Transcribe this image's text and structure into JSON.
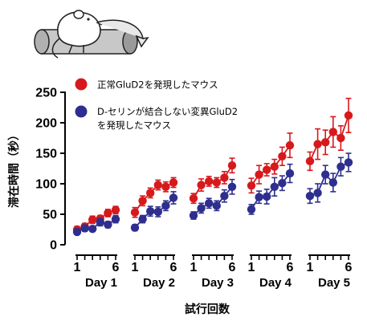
{
  "chart_data": {
    "type": "line",
    "title": "",
    "xlabel": "試行回数",
    "ylabel": "滞在時間（秒）",
    "ylim": [
      0,
      250
    ],
    "yticks": [
      0,
      50,
      100,
      150,
      200,
      250
    ],
    "trial_tick_labels": [
      "1",
      "6"
    ],
    "days": [
      "Day 1",
      "Day 2",
      "Day 3",
      "Day 4",
      "Day 5"
    ],
    "trials_per_day": 6,
    "error_bars": true,
    "series": [
      {
        "name": "正常GluD2を発現したマウス",
        "color": "#d7191c",
        "values": [
          [
            25,
            30,
            41,
            43,
            52,
            57
          ],
          [
            53,
            72,
            85,
            98,
            95,
            102
          ],
          [
            76,
            98,
            104,
            102,
            110,
            130
          ],
          [
            97,
            115,
            123,
            128,
            145,
            163
          ],
          [
            137,
            165,
            168,
            185,
            175,
            212
          ]
        ],
        "errors": [
          [
            5,
            5,
            6,
            5,
            6,
            6
          ],
          [
            8,
            8,
            8,
            8,
            8,
            8
          ],
          [
            8,
            10,
            8,
            8,
            10,
            12
          ],
          [
            12,
            15,
            10,
            12,
            15,
            20
          ],
          [
            15,
            25,
            20,
            25,
            20,
            28
          ]
        ]
      },
      {
        "name": "D-セリンが結合しない変異GluD2を発現したマウス",
        "color": "#2e2e8f",
        "values": [
          [
            21,
            27,
            26,
            37,
            33,
            42
          ],
          [
            28,
            42,
            55,
            54,
            64,
            77
          ],
          [
            48,
            60,
            68,
            64,
            80,
            95
          ],
          [
            58,
            78,
            79,
            95,
            101,
            117
          ],
          [
            80,
            85,
            115,
            102,
            128,
            135
          ]
        ],
        "errors": [
          [
            4,
            5,
            4,
            6,
            5,
            6
          ],
          [
            5,
            6,
            8,
            8,
            8,
            10
          ],
          [
            6,
            8,
            8,
            8,
            10,
            12
          ],
          [
            8,
            10,
            12,
            15,
            12,
            15
          ],
          [
            12,
            15,
            15,
            15,
            15,
            15
          ]
        ]
      }
    ],
    "legend_placement": "top-left"
  }
}
